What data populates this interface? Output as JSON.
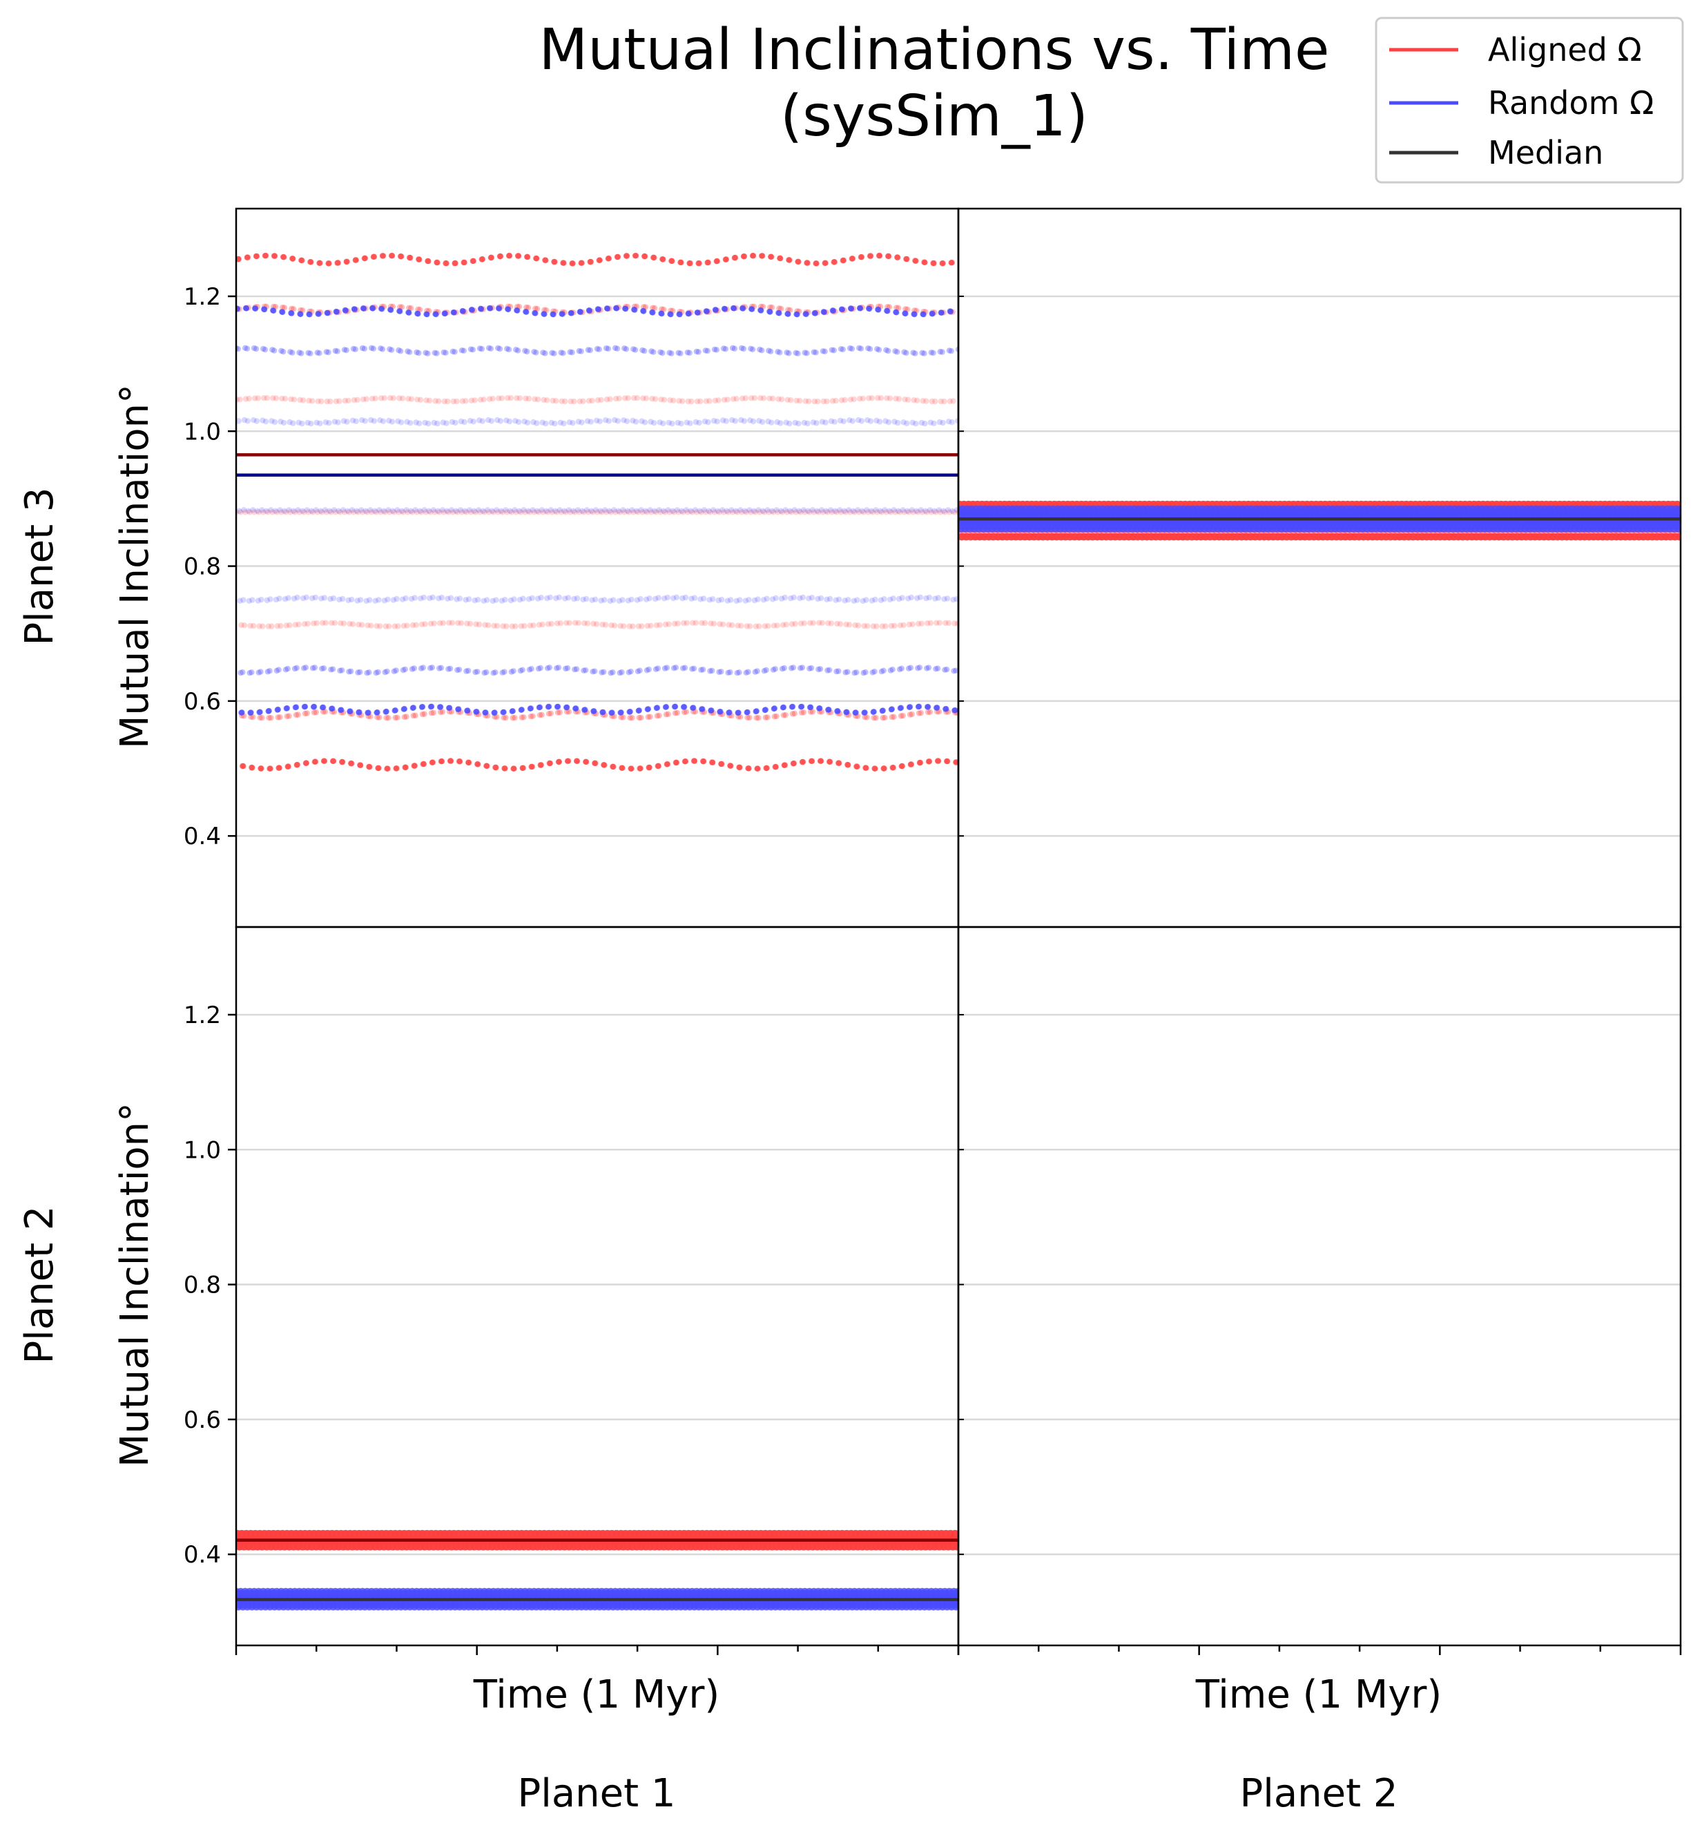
{
  "chart_data": {
    "type": "scatter",
    "title": "Mutual Inclinations vs. Time",
    "subtitle": "(sysSim_1)",
    "ylabel": "Mutual Inclination°",
    "xlabel": "Time (1 Myr)",
    "ylim": [
      0.265,
      1.33
    ],
    "yticks": [
      0.4,
      0.6,
      0.8,
      1.0,
      1.2
    ],
    "ytick_labels": [
      "0.4",
      "0.6",
      "0.8",
      "1.0",
      "1.2"
    ],
    "xlim": [
      0,
      1
    ],
    "grid": "horizontal",
    "legend_position": "top-right",
    "legend": [
      {
        "label": "Aligned Ω",
        "color": "#ff4040"
      },
      {
        "label": "Random Ω",
        "color": "#4a4aff"
      },
      {
        "label": "Median",
        "color": "#333333"
      }
    ],
    "row_labels": [
      "Planet 3",
      "Planet 2"
    ],
    "col_labels": [
      "Planet 1",
      "Planet 2"
    ],
    "panels": [
      {
        "id": "planet3-vs-planet1",
        "row": 0,
        "col": 0,
        "empty": false,
        "series": [
          {
            "name": "Aligned Ω",
            "color": "#ff4040",
            "kind": "oscillating",
            "min": 0.49,
            "max": 1.27,
            "cycles": 80
          },
          {
            "name": "Random Ω",
            "color": "#4a4aff",
            "kind": "oscillating",
            "min": 0.575,
            "max": 1.19,
            "cycles": 80
          }
        ],
        "medians": [
          {
            "series": "Aligned Ω",
            "value": 0.965,
            "color": "#8b0000"
          },
          {
            "series": "Random Ω",
            "value": 0.935,
            "color": "#00008b"
          }
        ]
      },
      {
        "id": "planet3-vs-planet2",
        "row": 0,
        "col": 1,
        "empty": false,
        "series": [
          {
            "name": "Aligned Ω",
            "color": "#ff4040",
            "kind": "band",
            "min": 0.84,
            "max": 0.895,
            "cycles": 160
          },
          {
            "name": "Random Ω",
            "color": "#4a4aff",
            "kind": "band",
            "min": 0.855,
            "max": 0.885,
            "cycles": 160
          }
        ],
        "medians": [
          {
            "series": "Aligned Ω",
            "value": 0.87,
            "color": "#333333"
          },
          {
            "series": "Random Ω",
            "value": 0.87,
            "color": "#333333"
          }
        ]
      },
      {
        "id": "planet2-vs-planet1",
        "row": 1,
        "col": 0,
        "empty": false,
        "series": [
          {
            "name": "Aligned Ω",
            "color": "#ff4040",
            "kind": "band",
            "min": 0.41,
            "max": 0.432,
            "cycles": 160
          },
          {
            "name": "Random Ω",
            "color": "#4a4aff",
            "kind": "band",
            "min": 0.322,
            "max": 0.345,
            "cycles": 160
          }
        ],
        "medians": [
          {
            "series": "Aligned Ω",
            "value": 0.421,
            "color": "#8b0000"
          },
          {
            "series": "Random Ω",
            "value": 0.333,
            "color": "#333333"
          }
        ]
      },
      {
        "id": "planet2-vs-planet2",
        "row": 1,
        "col": 1,
        "empty": true,
        "series": [],
        "medians": []
      }
    ]
  }
}
